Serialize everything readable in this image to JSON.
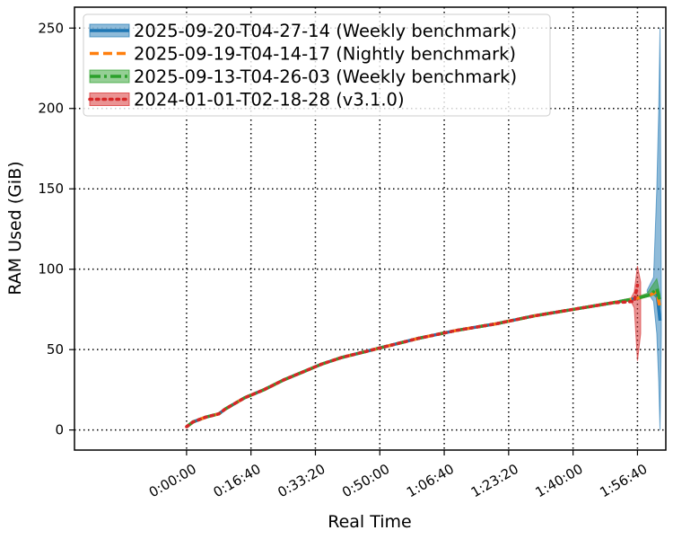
{
  "chart_data": {
    "type": "line",
    "title": "",
    "xlabel": "Real Time",
    "ylabel": "RAM Used (GiB)",
    "xlim": [
      -1740,
      7440
    ],
    "ylim": [
      -12.5,
      263
    ],
    "x_ticks": [
      0,
      1000,
      2000,
      3000,
      4000,
      5000,
      6000,
      7000
    ],
    "x_tick_labels": [
      "0:00:00",
      "0:16:40",
      "0:33:20",
      "0:50:00",
      "1:06:40",
      "1:23:20",
      "1:40:00",
      "1:56:40"
    ],
    "y_ticks": [
      0,
      50,
      100,
      150,
      200,
      250
    ],
    "y_tick_labels": [
      "0",
      "50",
      "100",
      "150",
      "200",
      "250"
    ],
    "grid": true,
    "legend_position": "top-left",
    "series": [
      {
        "name": "2025-09-20-T04-27-14 (Weekly benchmark)",
        "color": "#1f77b4",
        "linestyle": "solid",
        "x": [
          0,
          100,
          300,
          500,
          600,
          900,
          1200,
          1500,
          1800,
          2100,
          2400,
          3000,
          3600,
          4200,
          4800,
          5400,
          6000,
          6600,
          7000,
          7200,
          7300,
          7350
        ],
        "y": [
          2,
          5,
          8,
          10,
          13,
          20,
          25,
          31,
          36,
          41,
          45,
          51,
          57,
          62,
          66,
          71,
          75,
          79,
          82,
          84,
          86,
          68
        ],
        "band_x": [
          7150,
          7250,
          7300,
          7330,
          7350,
          7370
        ],
        "band_lower": [
          86,
          80,
          60,
          30,
          0,
          60
        ],
        "band_upper": [
          87,
          95,
          150,
          200,
          250,
          80
        ]
      },
      {
        "name": "2025-09-19-T04-14-17 (Nightly benchmark)",
        "color": "#ff7f0e",
        "linestyle": "dashed",
        "x": [
          0,
          100,
          300,
          500,
          600,
          900,
          1200,
          1500,
          1800,
          2100,
          2400,
          3000,
          3600,
          4200,
          4800,
          5400,
          6000,
          6600,
          7000,
          7200,
          7300,
          7350
        ],
        "y": [
          2,
          5,
          8,
          10,
          13,
          20,
          25,
          31,
          36,
          41,
          45,
          51,
          57,
          62,
          66,
          71,
          75,
          79,
          82,
          84,
          86,
          76
        ]
      },
      {
        "name": "2025-09-13-T04-26-03 (Weekly benchmark)",
        "color": "#2ca02c",
        "linestyle": "dashdot",
        "x": [
          0,
          100,
          300,
          500,
          600,
          900,
          1200,
          1500,
          1800,
          2100,
          2400,
          3000,
          3600,
          4200,
          4800,
          5400,
          6000,
          6600,
          7000,
          7200,
          7300,
          7350
        ],
        "y": [
          2,
          5,
          8,
          10,
          13,
          20,
          25,
          31,
          36,
          41,
          45,
          51,
          57,
          62,
          66,
          71,
          75,
          79,
          82,
          84,
          88,
          80
        ],
        "band_x": [
          7000,
          7150,
          7250,
          7300,
          7350
        ],
        "band_lower": [
          81,
          83,
          84,
          82,
          76
        ],
        "band_upper": [
          83,
          85,
          91,
          94,
          84
        ]
      },
      {
        "name": "2024-01-01-T02-18-28 (v3.1.0)",
        "color": "#d62728",
        "linestyle": "dotted",
        "x": [
          0,
          100,
          300,
          500,
          600,
          900,
          1200,
          1500,
          1800,
          2100,
          2400,
          3000,
          3600,
          4200,
          4800,
          5400,
          6000,
          6600,
          6950,
          7000
        ],
        "y": [
          2,
          5,
          8,
          10,
          13,
          20,
          25,
          31,
          36,
          41,
          45,
          51,
          57,
          62,
          66,
          71,
          75,
          79,
          80,
          90
        ],
        "band_x": [
          6900,
          6950,
          7000,
          7050
        ],
        "band_lower": [
          80,
          76,
          43,
          60
        ],
        "band_upper": [
          82,
          86,
          102,
          92
        ]
      }
    ]
  }
}
